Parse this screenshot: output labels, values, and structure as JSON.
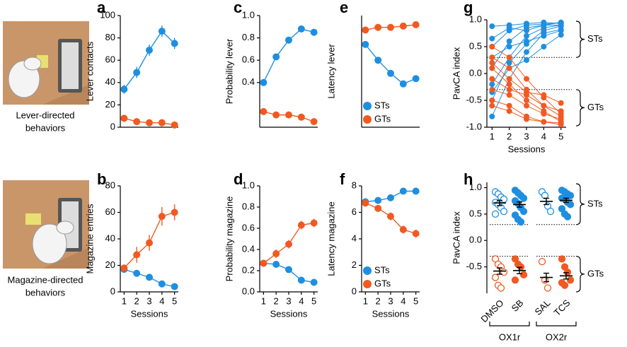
{
  "illustrations": [
    {
      "caption": [
        "Lever-directed",
        "behaviors"
      ]
    },
    {
      "caption": [
        "Magazine-directed",
        "behaviors"
      ]
    }
  ],
  "chart_data": [
    {
      "type": "line",
      "panel": "a",
      "ylabel": "Lever contacts",
      "x": [
        1,
        2,
        3,
        4,
        5
      ],
      "xlim": [
        0.7,
        5.3
      ],
      "ylim": [
        0,
        100
      ],
      "yticks": [
        0,
        20,
        40,
        60,
        80,
        100
      ],
      "series": [
        {
          "name": "STs",
          "color": "#1e8fe0",
          "values": [
            34,
            49,
            69,
            86,
            75
          ],
          "errors": [
            4,
            5,
            5,
            5,
            5
          ]
        },
        {
          "name": "GTs",
          "color": "#f05a22",
          "values": [
            8,
            5,
            4,
            4,
            2
          ],
          "errors": [
            1,
            1,
            1,
            1,
            1
          ]
        }
      ]
    },
    {
      "type": "line",
      "panel": "b",
      "ylabel": "Magazine entries",
      "xlabel": "Sessions",
      "x": [
        1,
        2,
        3,
        4,
        5
      ],
      "xlim": [
        0.7,
        5.3
      ],
      "xticks": [
        1,
        2,
        3,
        4,
        5
      ],
      "ylim": [
        0,
        80
      ],
      "yticks": [
        0,
        20,
        40,
        60,
        80
      ],
      "series": [
        {
          "name": "STs",
          "color": "#1e8fe0",
          "values": [
            17,
            14,
            11,
            6,
            4
          ],
          "errors": [
            1,
            1,
            1,
            1,
            1
          ]
        },
        {
          "name": "GTs",
          "color": "#f05a22",
          "values": [
            18,
            28,
            37,
            57,
            60
          ],
          "errors": [
            2,
            6,
            6,
            7,
            6
          ]
        }
      ]
    },
    {
      "type": "line",
      "panel": "c",
      "ylabel": "Probability lever",
      "x": [
        1,
        2,
        3,
        4,
        5
      ],
      "xlim": [
        0.7,
        5.3
      ],
      "ylim": [
        0,
        1
      ],
      "yticks": [
        0.4,
        0.6,
        0.8,
        {
          "value": 1,
          "label": "1.0"
        }
      ],
      "series": [
        {
          "name": "STs",
          "color": "#1e8fe0",
          "values": [
            0.4,
            0.63,
            0.78,
            0.88,
            0.85
          ],
          "errors": [
            0.03,
            0.03,
            0.03,
            0.02,
            0.02
          ]
        },
        {
          "name": "GTs",
          "color": "#f05a22",
          "values": [
            0.14,
            0.11,
            0.11,
            0.09,
            0.05
          ],
          "errors": [
            0.02,
            0.02,
            0.02,
            0.02,
            0.01
          ]
        }
      ]
    },
    {
      "type": "line",
      "panel": "d",
      "ylabel": "Probability magazine",
      "xlabel": "Sessions",
      "x": [
        1,
        2,
        3,
        4,
        5
      ],
      "xlim": [
        0.7,
        5.3
      ],
      "xticks": [
        1,
        2,
        3,
        4,
        5
      ],
      "ylim": [
        0,
        1
      ],
      "yticks": [
        {
          "value": 0,
          "label": "0.0"
        },
        0.2,
        0.4,
        0.6,
        0.8,
        {
          "value": 1,
          "label": "1.0"
        }
      ],
      "series": [
        {
          "name": "STs",
          "color": "#1e8fe0",
          "values": [
            0.27,
            0.26,
            0.21,
            0.11,
            0.09
          ],
          "errors": [
            0.02,
            0.02,
            0.02,
            0.01,
            0.01
          ]
        },
        {
          "name": "GTs",
          "color": "#f05a22",
          "values": [
            0.27,
            0.36,
            0.45,
            0.63,
            0.65
          ],
          "errors": [
            0.02,
            0.04,
            0.04,
            0.04,
            0.04
          ]
        }
      ]
    },
    {
      "type": "line",
      "panel": "e",
      "ylabel": "Latency lever",
      "x": [
        1,
        2,
        3,
        4,
        5
      ],
      "xlim": [
        0.7,
        5.3
      ],
      "ylim": [
        0,
        8.5
      ],
      "legend": "lower left",
      "series": [
        {
          "name": "STs",
          "color": "#1e8fe0",
          "values": [
            6.3,
            5.1,
            4.1,
            3.3,
            3.7
          ],
          "errors": [
            0.2,
            0.2,
            0.2,
            0.2,
            0.2
          ]
        },
        {
          "name": "GTs",
          "color": "#f05a22",
          "values": [
            7.4,
            7.6,
            7.6,
            7.7,
            7.8
          ],
          "errors": [
            0.1,
            0.1,
            0.1,
            0.1,
            0.1
          ]
        }
      ]
    },
    {
      "type": "line",
      "panel": "f",
      "ylabel": "Latency magazine",
      "xlabel": "Sessions",
      "x": [
        1,
        2,
        3,
        4,
        5
      ],
      "xlim": [
        0.7,
        5.3
      ],
      "xticks": [
        1,
        2,
        3,
        4,
        5
      ],
      "ylim": [
        0,
        8
      ],
      "yticks": [
        0,
        2,
        4,
        6,
        8
      ],
      "legend": "lower left",
      "series": [
        {
          "name": "STs",
          "color": "#1e8fe0",
          "values": [
            6.8,
            6.9,
            7.1,
            7.6,
            7.6
          ],
          "errors": [
            0.1,
            0.1,
            0.1,
            0.1,
            0.1
          ]
        },
        {
          "name": "GTs",
          "color": "#f05a22",
          "values": [
            6.7,
            6.3,
            5.7,
            4.7,
            4.4
          ],
          "errors": [
            0.2,
            0.2,
            0.3,
            0.3,
            0.3
          ]
        }
      ]
    },
    {
      "type": "spaghetti",
      "panel": "g",
      "ylabel": "PavCA index",
      "xlabel": "Sessions",
      "x": [
        1,
        2,
        3,
        4,
        5
      ],
      "xlim": [
        0.7,
        5.3
      ],
      "xticks": [
        1,
        2,
        3,
        4,
        5
      ],
      "ylim": [
        -1,
        1
      ],
      "yticks": [
        {
          "value": -1,
          "label": "-1.0"
        },
        -0.5,
        {
          "value": 0,
          "label": "0.0"
        },
        0.5,
        {
          "value": 1,
          "label": "1.0"
        }
      ],
      "thresholds": [
        0.3,
        -0.3
      ],
      "group_labels": [
        "STs",
        "GTs"
      ],
      "series": [
        {
          "color": "#1e8fe0",
          "values": [
            0.88,
            0.9,
            0.93,
            0.95,
            0.93
          ]
        },
        {
          "color": "#1e8fe0",
          "values": [
            0.5,
            0.8,
            0.9,
            0.92,
            0.95
          ]
        },
        {
          "color": "#1e8fe0",
          "values": [
            0.1,
            0.6,
            0.85,
            0.9,
            0.9
          ]
        },
        {
          "color": "#1e8fe0",
          "values": [
            -0.2,
            0.3,
            0.7,
            0.85,
            0.9
          ]
        },
        {
          "color": "#1e8fe0",
          "values": [
            -0.5,
            0.2,
            0.55,
            0.8,
            0.88
          ]
        },
        {
          "color": "#1e8fe0",
          "values": [
            -0.8,
            -0.1,
            0.4,
            0.75,
            0.82
          ]
        },
        {
          "color": "#1e8fe0",
          "values": [
            0.3,
            0.5,
            0.6,
            0.7,
            0.8
          ]
        },
        {
          "color": "#1e8fe0",
          "values": [
            -0.35,
            0.1,
            0.25,
            0.5,
            0.72
          ]
        },
        {
          "color": "#1e8fe0",
          "values": [
            0.65,
            0.85,
            0.8,
            0.9,
            0.95
          ]
        },
        {
          "color": "#f05a22",
          "values": [
            -0.3,
            -0.4,
            -0.6,
            -0.75,
            -0.85
          ]
        },
        {
          "color": "#f05a22",
          "values": [
            0.1,
            -0.2,
            -0.5,
            -0.7,
            -0.9
          ]
        },
        {
          "color": "#f05a22",
          "values": [
            0.3,
            0.1,
            -0.3,
            -0.6,
            -0.8
          ]
        },
        {
          "color": "#f05a22",
          "values": [
            -0.5,
            -0.6,
            -0.8,
            -0.9,
            -0.95
          ]
        },
        {
          "color": "#f05a22",
          "values": [
            0.2,
            -0.1,
            -0.35,
            -0.4,
            -0.55
          ]
        },
        {
          "color": "#f05a22",
          "values": [
            -0.1,
            -0.3,
            -0.4,
            -0.6,
            -0.7
          ]
        },
        {
          "color": "#f05a22",
          "values": [
            0.5,
            0.3,
            -0.1,
            -0.45,
            -0.75
          ]
        },
        {
          "color": "#f05a22",
          "values": [
            -0.6,
            -0.7,
            -0.85,
            -0.9,
            -0.92
          ]
        }
      ]
    },
    {
      "type": "dotplot",
      "panel": "h",
      "ylabel": "PavCA index",
      "ylim": [
        -1,
        1.1
      ],
      "yticks": [
        -0.5,
        {
          "value": 0,
          "label": "0.0"
        },
        0.5,
        {
          "value": 1,
          "label": "1.0"
        }
      ],
      "categories": [
        "DMSO",
        "SB",
        "SAL",
        "TCS"
      ],
      "open": [
        true,
        false,
        true,
        false
      ],
      "groups": [
        {
          "label": "OX1r",
          "categories": [
            0,
            1
          ]
        },
        {
          "label": "OX2r",
          "categories": [
            2,
            3
          ]
        }
      ],
      "thresholds": [
        0.3,
        -0.3
      ],
      "group_labels": [
        "STs",
        "GTs"
      ],
      "series": [
        {
          "color": "#1e8fe0",
          "means": [
            0.71,
            0.68,
            0.74,
            0.76
          ],
          "errors": [
            0.05,
            0.05,
            0.06,
            0.04
          ],
          "points": [
            [
              0.92,
              0.88,
              0.82,
              0.78,
              0.72,
              0.68,
              0.62,
              0.55,
              0.5
            ],
            [
              0.95,
              0.9,
              0.85,
              0.8,
              0.75,
              0.7,
              0.62,
              0.55,
              0.48,
              0.4,
              0.35
            ],
            [
              0.92,
              0.85,
              0.65,
              0.55
            ],
            [
              0.95,
              0.92,
              0.88,
              0.85,
              0.8,
              0.78,
              0.72,
              0.68,
              0.6,
              0.5,
              0.45
            ]
          ]
        },
        {
          "color": "#f05a22",
          "means": [
            -0.58,
            -0.57,
            -0.7,
            -0.67
          ],
          "errors": [
            0.06,
            0.06,
            0.08,
            0.06
          ],
          "points": [
            [
              -0.35,
              -0.45,
              -0.5,
              -0.6,
              -0.7,
              -0.85,
              -0.9
            ],
            [
              -0.35,
              -0.45,
              -0.5,
              -0.65,
              -0.75
            ],
            [
              -0.4,
              -0.75,
              -0.9
            ],
            [
              -0.35,
              -0.5,
              -0.6,
              -0.75,
              -0.8,
              -0.85
            ]
          ]
        }
      ]
    }
  ]
}
